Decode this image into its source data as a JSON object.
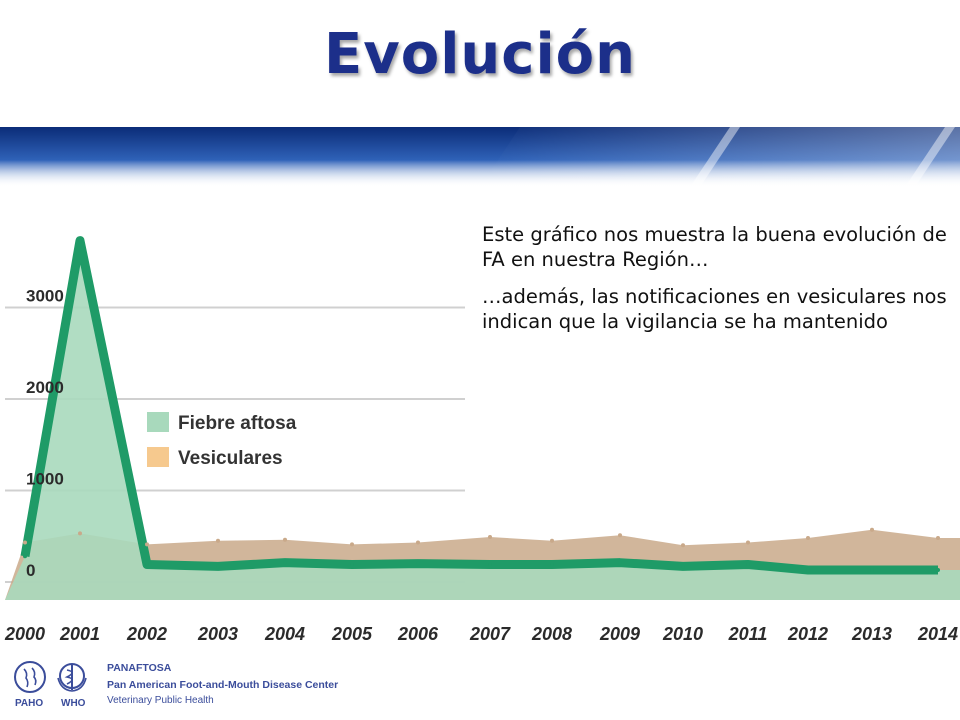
{
  "slide": {
    "title": "Evolución",
    "caption": [
      "Este gráfico nos muestra la buena evolución de FA en nuestra Región…",
      "…además, las notificaciones en vesiculares nos indican que la vigilancia se ha mantenido"
    ]
  },
  "footer": {
    "logo_left_label": "PAHO",
    "logo_right_label": "WHO",
    "org_name": "PANAFTOSA",
    "org_full": "Pan American Foot-and-Mouth Disease Center",
    "org_unit": "Veterinary Public Health"
  },
  "colors": {
    "title": "#1c2f8a",
    "fa_fill": "#a8d9bc",
    "fa_line": "#1f9b67",
    "ves_fill": "#c9a98a",
    "legend_ves": "#f6c98e",
    "axis_label": "#2b2b2b"
  },
  "chart_data": {
    "type": "area",
    "title": "",
    "xlabel": "",
    "ylabel": "",
    "x": [
      "2000",
      "2001",
      "2002",
      "2003",
      "2004",
      "2005",
      "2006",
      "2007",
      "2008",
      "2009",
      "2010",
      "2011",
      "2012",
      "2013",
      "2014"
    ],
    "y_ticks": [
      0,
      1000,
      2000,
      3000
    ],
    "ylim": [
      0,
      3700
    ],
    "grid": true,
    "legend_position": "middle-left",
    "series": [
      {
        "name": "Fiebre aftosa",
        "values": [
          150,
          3600,
          60,
          40,
          80,
          60,
          70,
          60,
          60,
          80,
          40,
          60,
          0,
          0,
          0
        ]
      },
      {
        "name": "Vesiculares",
        "values": [
          300,
          400,
          280,
          320,
          330,
          280,
          300,
          360,
          320,
          380,
          270,
          300,
          350,
          440,
          350
        ]
      }
    ]
  }
}
